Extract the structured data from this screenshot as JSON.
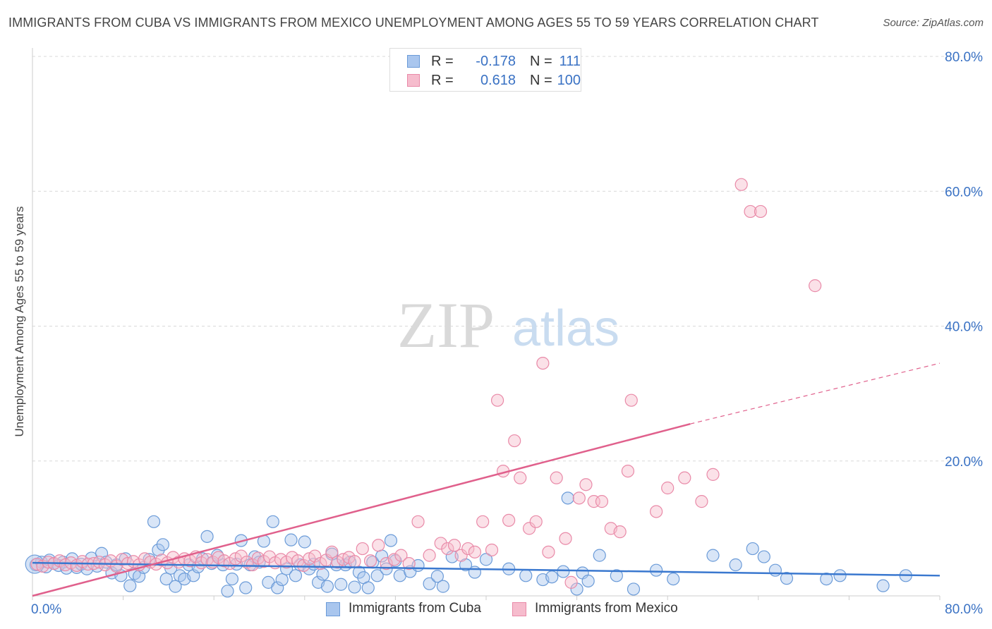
{
  "title": "IMMIGRANTS FROM CUBA VS IMMIGRANTS FROM MEXICO UNEMPLOYMENT AMONG AGES 55 TO 59 YEARS CORRELATION CHART",
  "source": "Source: ZipAtlas.com",
  "watermark": {
    "zip": "ZIP",
    "atlas": "atlas"
  },
  "legend": {
    "rows": [
      {
        "r_label": "R =",
        "r_value": "-0.178",
        "n_label": "N =",
        "n_value": "111"
      },
      {
        "r_label": "R =",
        "r_value": "0.618",
        "n_label": "N =",
        "n_value": "100"
      }
    ]
  },
  "bottom_legend": [
    "Immigrants from Cuba",
    "Immigrants from Mexico"
  ],
  "colors": {
    "cuba_fill": "#a9c6ee",
    "cuba_stroke": "#6b9bd8",
    "cuba_line": "#3a78cf",
    "mexico_fill": "#f6bccd",
    "mexico_stroke": "#e98aa8",
    "mexico_line": "#e0608c",
    "axis_label": "#3a72c4",
    "grid": "#d8d8d8"
  },
  "chart_data": {
    "type": "scatter",
    "title": "IMMIGRANTS FROM CUBA VS IMMIGRANTS FROM MEXICO UNEMPLOYMENT AMONG AGES 55 TO 59 YEARS CORRELATION CHART",
    "xlabel": "",
    "ylabel": "Unemployment Among Ages 55 to 59 years",
    "xlim": [
      0,
      80
    ],
    "ylim": [
      0,
      80
    ],
    "x_tick_labels": [
      "0.0%",
      "80.0%"
    ],
    "y_ticks": [
      20,
      40,
      60,
      80
    ],
    "y_tick_labels": [
      "20.0%",
      "40.0%",
      "60.0%",
      "80.0%"
    ],
    "grid": true,
    "series": [
      {
        "name": "Immigrants from Cuba",
        "r": -0.178,
        "n": 111,
        "trend": {
          "x0": 0,
          "y0": 4.9,
          "x1": 80,
          "y1": 3.0,
          "dashed_from": null
        },
        "points": [
          [
            0.3,
            4.6
          ],
          [
            0.8,
            5.0
          ],
          [
            1.2,
            4.3
          ],
          [
            1.5,
            5.3
          ],
          [
            1.9,
            4.8
          ],
          [
            2.3,
            4.5
          ],
          [
            2.7,
            5.0
          ],
          [
            3.0,
            4.1
          ],
          [
            3.5,
            5.5
          ],
          [
            3.9,
            4.2
          ],
          [
            4.3,
            4.7
          ],
          [
            4.8,
            4.0
          ],
          [
            5.2,
            5.6
          ],
          [
            5.7,
            4.4
          ],
          [
            6.1,
            6.3
          ],
          [
            6.5,
            5.0
          ],
          [
            7.0,
            3.4
          ],
          [
            7.4,
            4.6
          ],
          [
            7.8,
            3.0
          ],
          [
            8.2,
            5.5
          ],
          [
            8.6,
            1.5
          ],
          [
            9.0,
            3.3
          ],
          [
            9.4,
            2.9
          ],
          [
            9.8,
            4.2
          ],
          [
            10.3,
            5.4
          ],
          [
            10.7,
            11.0
          ],
          [
            11.1,
            6.8
          ],
          [
            11.5,
            7.6
          ],
          [
            11.8,
            2.5
          ],
          [
            12.2,
            4.1
          ],
          [
            12.6,
            1.4
          ],
          [
            13.0,
            3.0
          ],
          [
            13.4,
            2.5
          ],
          [
            13.8,
            4.6
          ],
          [
            14.2,
            3.0
          ],
          [
            14.6,
            4.3
          ],
          [
            15.0,
            5.5
          ],
          [
            15.4,
            8.8
          ],
          [
            15.8,
            4.8
          ],
          [
            16.3,
            6.0
          ],
          [
            16.8,
            4.6
          ],
          [
            17.2,
            0.7
          ],
          [
            17.6,
            2.5
          ],
          [
            18.0,
            4.7
          ],
          [
            18.4,
            8.2
          ],
          [
            18.8,
            1.2
          ],
          [
            19.2,
            4.6
          ],
          [
            19.6,
            5.8
          ],
          [
            20.0,
            5.0
          ],
          [
            20.4,
            8.1
          ],
          [
            20.8,
            2.0
          ],
          [
            21.2,
            11.0
          ],
          [
            21.6,
            1.2
          ],
          [
            22.0,
            2.4
          ],
          [
            22.4,
            4.0
          ],
          [
            22.8,
            8.3
          ],
          [
            23.2,
            3.0
          ],
          [
            23.6,
            4.6
          ],
          [
            24.0,
            8.0
          ],
          [
            24.4,
            4.0
          ],
          [
            24.8,
            4.7
          ],
          [
            25.2,
            2.0
          ],
          [
            25.6,
            3.2
          ],
          [
            26.0,
            1.4
          ],
          [
            26.4,
            6.2
          ],
          [
            26.8,
            4.6
          ],
          [
            27.2,
            1.7
          ],
          [
            27.6,
            4.6
          ],
          [
            28.0,
            5.0
          ],
          [
            28.4,
            1.3
          ],
          [
            28.8,
            3.5
          ],
          [
            29.2,
            2.7
          ],
          [
            29.6,
            1.2
          ],
          [
            30.0,
            5.0
          ],
          [
            30.4,
            3.0
          ],
          [
            30.8,
            5.9
          ],
          [
            31.2,
            4.0
          ],
          [
            31.6,
            8.2
          ],
          [
            32.0,
            5.2
          ],
          [
            32.4,
            3.0
          ],
          [
            33.3,
            3.6
          ],
          [
            34.0,
            4.5
          ],
          [
            35.0,
            1.8
          ],
          [
            35.7,
            2.9
          ],
          [
            36.2,
            1.4
          ],
          [
            37.0,
            5.8
          ],
          [
            38.2,
            4.6
          ],
          [
            39.0,
            3.5
          ],
          [
            40.0,
            5.4
          ],
          [
            42.0,
            4.0
          ],
          [
            43.5,
            3.0
          ],
          [
            45.0,
            2.4
          ],
          [
            45.8,
            2.8
          ],
          [
            46.8,
            3.6
          ],
          [
            47.2,
            14.5
          ],
          [
            48.0,
            1.0
          ],
          [
            48.5,
            3.4
          ],
          [
            49.0,
            2.2
          ],
          [
            50.0,
            6.0
          ],
          [
            51.5,
            3.0
          ],
          [
            53.0,
            1.0
          ],
          [
            55.0,
            3.8
          ],
          [
            56.5,
            2.5
          ],
          [
            60.0,
            6.0
          ],
          [
            62.0,
            4.6
          ],
          [
            63.5,
            7.0
          ],
          [
            64.5,
            5.8
          ],
          [
            65.5,
            3.8
          ],
          [
            66.5,
            2.6
          ],
          [
            70.0,
            2.5
          ],
          [
            71.2,
            3.0
          ],
          [
            75.0,
            1.5
          ],
          [
            77.0,
            3.0
          ]
        ]
      },
      {
        "name": "Immigrants from Mexico",
        "r": 0.618,
        "n": 100,
        "trend": {
          "x0": 0,
          "y0": 0.0,
          "x1": 58,
          "y1": 25.5,
          "dashed_to_x": 80,
          "dashed_to_y": 34.5
        },
        "points": [
          [
            0.4,
            4.7
          ],
          [
            0.9,
            4.4
          ],
          [
            1.4,
            5.0
          ],
          [
            1.9,
            4.8
          ],
          [
            2.4,
            5.2
          ],
          [
            2.9,
            4.6
          ],
          [
            3.4,
            4.9
          ],
          [
            3.9,
            4.5
          ],
          [
            4.4,
            5.1
          ],
          [
            4.9,
            4.7
          ],
          [
            5.4,
            4.8
          ],
          [
            5.9,
            5.0
          ],
          [
            6.4,
            4.6
          ],
          [
            6.9,
            5.2
          ],
          [
            7.4,
            4.4
          ],
          [
            7.9,
            5.4
          ],
          [
            8.4,
            4.8
          ],
          [
            8.9,
            5.1
          ],
          [
            9.4,
            4.6
          ],
          [
            9.9,
            5.5
          ],
          [
            10.4,
            5.0
          ],
          [
            10.9,
            4.7
          ],
          [
            11.4,
            5.3
          ],
          [
            11.9,
            4.9
          ],
          [
            12.4,
            5.7
          ],
          [
            12.9,
            5.0
          ],
          [
            13.4,
            5.5
          ],
          [
            13.9,
            5.2
          ],
          [
            14.4,
            5.8
          ],
          [
            14.9,
            4.9
          ],
          [
            15.4,
            5.4
          ],
          [
            15.9,
            5.0
          ],
          [
            16.4,
            5.7
          ],
          [
            16.9,
            5.2
          ],
          [
            17.4,
            4.8
          ],
          [
            17.9,
            5.5
          ],
          [
            18.4,
            5.9
          ],
          [
            18.9,
            5.0
          ],
          [
            19.4,
            4.6
          ],
          [
            19.9,
            5.6
          ],
          [
            20.4,
            5.1
          ],
          [
            20.9,
            5.8
          ],
          [
            21.4,
            4.9
          ],
          [
            21.9,
            5.4
          ],
          [
            22.4,
            5.0
          ],
          [
            22.9,
            5.7
          ],
          [
            23.4,
            5.2
          ],
          [
            23.9,
            4.5
          ],
          [
            24.4,
            5.5
          ],
          [
            24.9,
            5.9
          ],
          [
            25.4,
            4.8
          ],
          [
            25.9,
            5.3
          ],
          [
            26.4,
            6.5
          ],
          [
            26.9,
            5.0
          ],
          [
            27.4,
            5.4
          ],
          [
            27.9,
            5.7
          ],
          [
            28.4,
            5.1
          ],
          [
            29.1,
            7.0
          ],
          [
            29.8,
            5.2
          ],
          [
            30.5,
            7.5
          ],
          [
            31.2,
            4.8
          ],
          [
            31.9,
            5.4
          ],
          [
            32.5,
            6.0
          ],
          [
            33.2,
            4.8
          ],
          [
            34.0,
            11.0
          ],
          [
            35.0,
            6.0
          ],
          [
            36.0,
            7.8
          ],
          [
            36.6,
            7.0
          ],
          [
            37.2,
            7.5
          ],
          [
            37.8,
            6.0
          ],
          [
            38.4,
            7.0
          ],
          [
            39.0,
            6.5
          ],
          [
            39.7,
            11.0
          ],
          [
            40.5,
            6.8
          ],
          [
            41.0,
            29.0
          ],
          [
            41.5,
            18.5
          ],
          [
            42.0,
            11.2
          ],
          [
            42.5,
            23.0
          ],
          [
            43.0,
            17.5
          ],
          [
            43.8,
            10.0
          ],
          [
            44.4,
            11.0
          ],
          [
            45.0,
            34.5
          ],
          [
            45.5,
            6.5
          ],
          [
            46.2,
            17.5
          ],
          [
            47.0,
            8.5
          ],
          [
            47.5,
            2.0
          ],
          [
            48.2,
            14.5
          ],
          [
            48.8,
            16.5
          ],
          [
            49.5,
            14.0
          ],
          [
            50.2,
            14.0
          ],
          [
            51.0,
            10.0
          ],
          [
            51.8,
            9.5
          ],
          [
            52.5,
            18.5
          ],
          [
            52.8,
            29.0
          ],
          [
            55.0,
            12.5
          ],
          [
            56.0,
            16.0
          ],
          [
            57.5,
            17.5
          ],
          [
            59.0,
            14.0
          ],
          [
            60.0,
            18.0
          ],
          [
            62.5,
            61.0
          ],
          [
            63.3,
            57.0
          ],
          [
            64.2,
            57.0
          ],
          [
            69.0,
            46.0
          ]
        ]
      }
    ]
  }
}
